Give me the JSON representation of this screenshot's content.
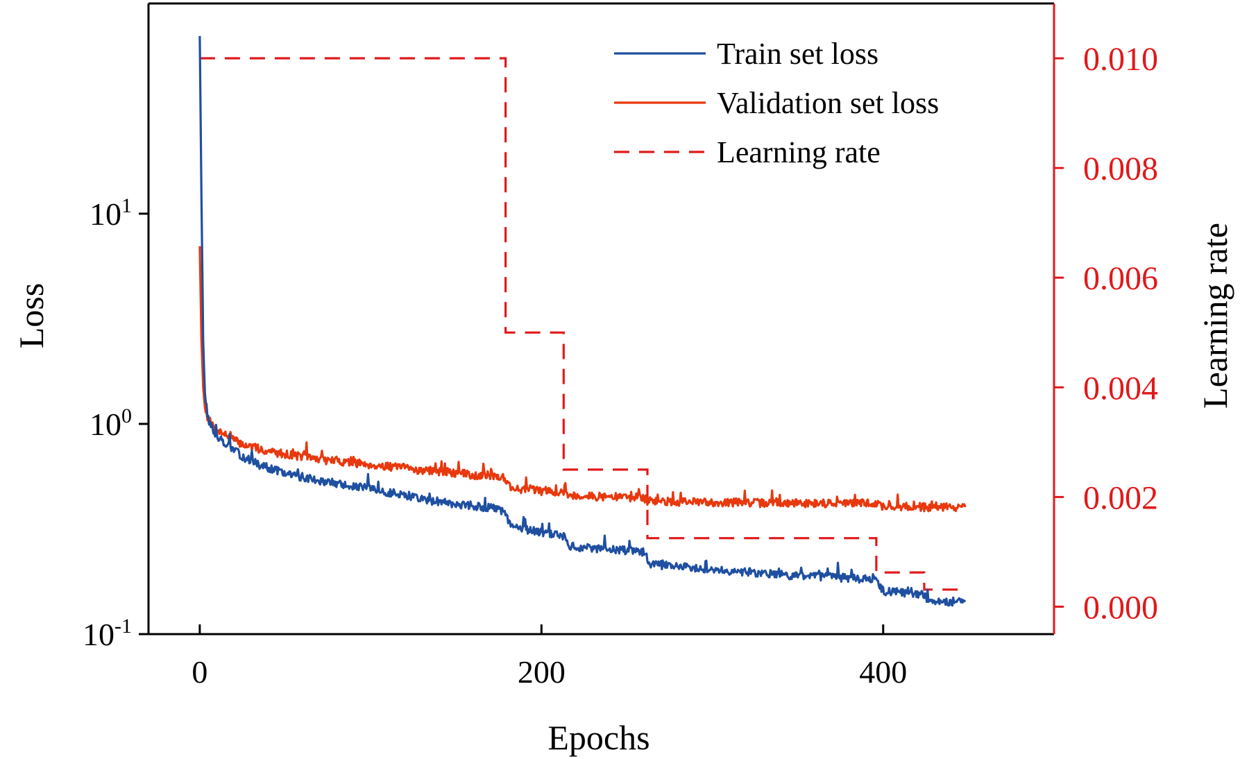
{
  "chart_data": {
    "type": "line",
    "xlabel": "Epochs",
    "ylabel": "Loss",
    "y2label": "Learning rate",
    "xlim": [
      -30,
      500
    ],
    "x_ticks": [
      0,
      200,
      400
    ],
    "y_scale": "log",
    "ylim": [
      0.1,
      100
    ],
    "y_ticks": [
      {
        "value": 0.1,
        "base": "10",
        "exp": "-1"
      },
      {
        "value": 1,
        "base": "10",
        "exp": "0"
      },
      {
        "value": 10,
        "base": "10",
        "exp": "1"
      }
    ],
    "y2lim": [
      -0.0005,
      0.011
    ],
    "y2_ticks": [
      "0.000",
      "0.002",
      "0.004",
      "0.006",
      "0.008",
      "0.010"
    ],
    "legend_position": "top-right",
    "colors": {
      "train": "#1f4fa0",
      "validation": "#e8380d",
      "learning_rate": "#e0191b",
      "right_axis": "#e0191b"
    },
    "series": [
      {
        "name": "Train set loss",
        "axis": "left",
        "style": "solid",
        "x": [
          0,
          1,
          2,
          3,
          5,
          8,
          12,
          16,
          20,
          25,
          30,
          35,
          40,
          45,
          50,
          55,
          60,
          65,
          70,
          75,
          80,
          85,
          90,
          95,
          100,
          105,
          110,
          115,
          120,
          125,
          130,
          135,
          140,
          145,
          150,
          155,
          160,
          165,
          170,
          175,
          178,
          182,
          185,
          190,
          195,
          200,
          205,
          210,
          213,
          216,
          220,
          230,
          240,
          250,
          255,
          260,
          262,
          264,
          270,
          280,
          290,
          300,
          310,
          320,
          330,
          340,
          350,
          360,
          370,
          375,
          380,
          390,
          395,
          400,
          410,
          420,
          423,
          426,
          430,
          440,
          448
        ],
        "y": [
          70,
          12,
          2.5,
          1.4,
          1.05,
          0.92,
          0.85,
          0.8,
          0.75,
          0.7,
          0.67,
          0.64,
          0.62,
          0.6,
          0.58,
          0.57,
          0.56,
          0.55,
          0.54,
          0.53,
          0.52,
          0.51,
          0.5,
          0.5,
          0.49,
          0.48,
          0.47,
          0.47,
          0.46,
          0.45,
          0.44,
          0.43,
          0.43,
          0.42,
          0.42,
          0.41,
          0.41,
          0.4,
          0.4,
          0.39,
          0.38,
          0.33,
          0.32,
          0.315,
          0.31,
          0.305,
          0.3,
          0.3,
          0.29,
          0.265,
          0.26,
          0.255,
          0.252,
          0.25,
          0.248,
          0.246,
          0.22,
          0.215,
          0.213,
          0.21,
          0.207,
          0.205,
          0.2,
          0.198,
          0.195,
          0.192,
          0.19,
          0.188,
          0.187,
          0.186,
          0.185,
          0.183,
          0.182,
          0.16,
          0.158,
          0.156,
          0.155,
          0.145,
          0.144,
          0.143,
          0.142
        ]
      },
      {
        "name": "Validation set loss",
        "axis": "left",
        "style": "solid",
        "x": [
          0,
          1,
          2,
          3,
          5,
          8,
          12,
          16,
          20,
          25,
          30,
          35,
          40,
          45,
          50,
          55,
          60,
          65,
          70,
          75,
          80,
          85,
          90,
          95,
          100,
          105,
          110,
          115,
          120,
          125,
          130,
          135,
          140,
          145,
          150,
          155,
          160,
          165,
          170,
          175,
          178,
          182,
          185,
          190,
          195,
          200,
          205,
          210,
          213,
          216,
          220,
          230,
          240,
          250,
          255,
          260,
          262,
          264,
          270,
          280,
          290,
          300,
          310,
          320,
          330,
          340,
          350,
          360,
          370,
          375,
          380,
          390,
          395,
          400,
          410,
          420,
          423,
          426,
          430,
          440,
          448
        ],
        "y": [
          7,
          2.5,
          1.5,
          1.2,
          1.05,
          0.98,
          0.92,
          0.88,
          0.84,
          0.8,
          0.78,
          0.76,
          0.74,
          0.73,
          0.72,
          0.71,
          0.7,
          0.69,
          0.68,
          0.67,
          0.67,
          0.66,
          0.65,
          0.65,
          0.64,
          0.63,
          0.63,
          0.62,
          0.62,
          0.61,
          0.6,
          0.6,
          0.59,
          0.59,
          0.58,
          0.58,
          0.57,
          0.57,
          0.57,
          0.56,
          0.56,
          0.5,
          0.49,
          0.49,
          0.485,
          0.48,
          0.48,
          0.475,
          0.47,
          0.46,
          0.455,
          0.452,
          0.45,
          0.448,
          0.447,
          0.446,
          0.43,
          0.43,
          0.428,
          0.426,
          0.425,
          0.424,
          0.423,
          0.422,
          0.421,
          0.42,
          0.42,
          0.42,
          0.42,
          0.42,
          0.42,
          0.42,
          0.42,
          0.405,
          0.404,
          0.403,
          0.403,
          0.402,
          0.402,
          0.402,
          0.402
        ]
      },
      {
        "name": "Learning rate",
        "axis": "right",
        "style": "dashed",
        "step": true,
        "x": [
          0,
          179,
          179,
          213,
          213,
          262,
          262,
          396,
          396,
          424,
          424,
          448
        ],
        "y": [
          0.01,
          0.01,
          0.005,
          0.005,
          0.0025,
          0.0025,
          0.00125,
          0.00125,
          0.000625,
          0.000625,
          0.0003125,
          0.0003125
        ]
      }
    ]
  }
}
